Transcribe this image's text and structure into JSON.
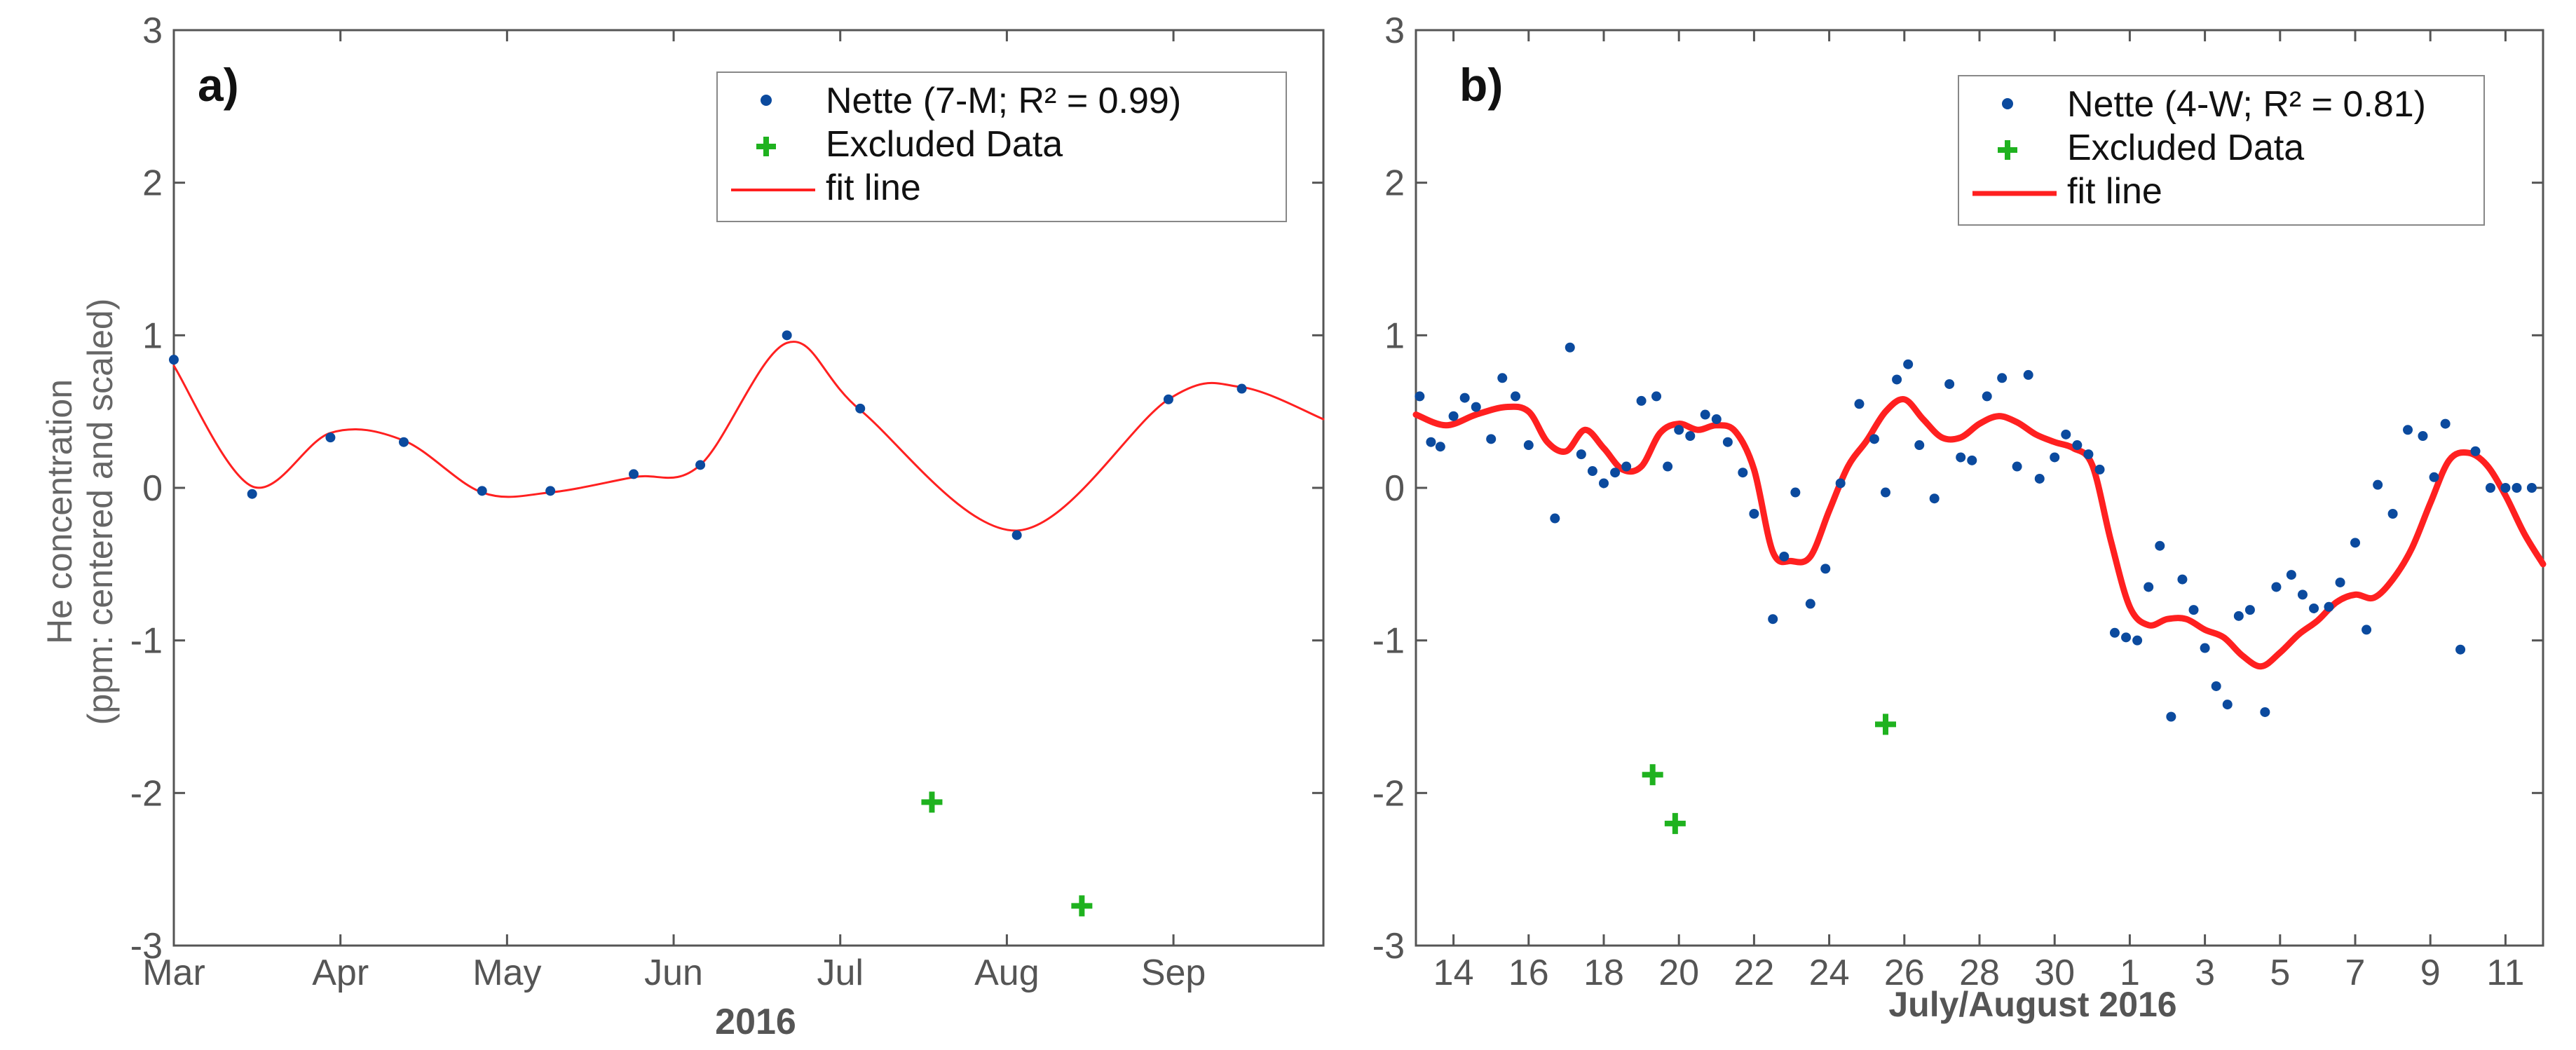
{
  "chart_data": [
    {
      "type": "scatter",
      "panel_label": "a)",
      "xlabel": "2016",
      "ylabel": [
        "He concentration",
        "(ppm: centered and scaled)"
      ],
      "xunit": "month (Mar 2016 = 0)",
      "xlim": [
        0,
        6.9
      ],
      "ylim": [
        -3,
        3
      ],
      "xticks": [
        0,
        1,
        2,
        3,
        4,
        5,
        6
      ],
      "xtick_labels": [
        "Mar",
        "Apr",
        "May",
        "Jun",
        "Jul",
        "Aug",
        "Sep"
      ],
      "yticks": [
        -3,
        -2,
        -1,
        0,
        1,
        2,
        3
      ],
      "ytick_labels": [
        "-3",
        "-2",
        "-1",
        "0",
        "1",
        "2",
        "3"
      ],
      "legend": {
        "position": "top-right",
        "entries": [
          {
            "label": "Nette (7-M; R² = 0.99)",
            "marker": "dot",
            "color": "#0b4a9e"
          },
          {
            "label": "Excluded Data",
            "marker": "plus",
            "color": "#1fb21f"
          },
          {
            "label": "fit line",
            "marker": "line",
            "color": "#ff2020"
          }
        ]
      },
      "series": [
        {
          "name": "Nette (7-M; R² = 0.99)",
          "kind": "points",
          "color": "#0b4a9e",
          "x": [
            0,
            0.47,
            0.94,
            1.38,
            1.85,
            2.26,
            2.76,
            3.16,
            3.68,
            4.12,
            5.06,
            5.97,
            6.41
          ],
          "y": [
            0.84,
            -0.04,
            0.33,
            0.3,
            -0.02,
            -0.02,
            0.09,
            0.15,
            1.0,
            0.52,
            -0.31,
            0.58,
            0.65
          ]
        },
        {
          "name": "Excluded Data",
          "kind": "plus",
          "color": "#1fb21f",
          "x": [
            4.55,
            5.45
          ],
          "y": [
            -2.06,
            -2.74
          ]
        },
        {
          "name": "fit line",
          "kind": "line",
          "color": "#ff2020",
          "width": 3,
          "x": [
            0,
            0.47,
            0.94,
            1.38,
            1.85,
            2.26,
            2.76,
            3.16,
            3.68,
            4.12,
            5.06,
            5.97,
            6.41,
            6.9
          ],
          "y": [
            0.8,
            0.01,
            0.36,
            0.31,
            -0.03,
            -0.03,
            0.07,
            0.15,
            0.95,
            0.51,
            -0.28,
            0.58,
            0.66,
            0.45
          ]
        }
      ]
    },
    {
      "type": "scatter",
      "panel_label": "b)",
      "xlabel": "July/August 2016",
      "xunit": "day (July 13 = 0)",
      "xlim": [
        0,
        30
      ],
      "ylim": [
        -3,
        3
      ],
      "xticks": [
        1,
        3,
        5,
        7,
        9,
        11,
        13,
        15,
        17,
        19,
        21,
        23,
        25,
        27,
        29
      ],
      "xtick_labels": [
        "14",
        "16",
        "18",
        "20",
        "22",
        "24",
        "26",
        "28",
        "30",
        "1",
        "3",
        "5",
        "7",
        "9",
        "11"
      ],
      "yticks": [
        -3,
        -2,
        -1,
        0,
        1,
        2,
        3
      ],
      "ytick_labels": [
        "-3",
        "-2",
        "-1",
        "0",
        "1",
        "2",
        "3"
      ],
      "legend": {
        "position": "top-right",
        "entries": [
          {
            "label": "Nette (4-W; R² = 0.81)",
            "marker": "dot",
            "color": "#0b4a9e"
          },
          {
            "label": "Excluded Data",
            "marker": "plus",
            "color": "#1fb21f"
          },
          {
            "label": "fit line",
            "marker": "line",
            "color": "#ff2020"
          }
        ]
      },
      "series": [
        {
          "name": "Nette (4-W; R² = 0.81)",
          "kind": "points",
          "color": "#0b4a9e",
          "x": [
            0.1,
            0.4,
            0.65,
            1.0,
            1.3,
            1.6,
            2.0,
            2.3,
            2.65,
            3.0,
            3.7,
            4.1,
            4.4,
            4.7,
            5.0,
            5.3,
            5.6,
            6.0,
            6.4,
            6.7,
            7.0,
            7.3,
            7.7,
            8.0,
            8.3,
            8.7,
            9.0,
            9.5,
            9.8,
            10.1,
            10.5,
            10.9,
            11.3,
            11.8,
            12.2,
            12.5,
            12.8,
            13.1,
            13.4,
            13.8,
            14.2,
            14.5,
            14.8,
            15.2,
            15.6,
            16.0,
            16.3,
            16.6,
            17.0,
            17.3,
            17.6,
            17.9,
            18.2,
            18.6,
            18.9,
            19.2,
            19.5,
            19.8,
            20.1,
            20.4,
            20.7,
            21.0,
            21.3,
            21.6,
            21.9,
            22.2,
            22.6,
            22.9,
            23.3,
            23.6,
            23.9,
            24.3,
            24.6,
            25.0,
            25.3,
            25.6,
            26.0,
            26.4,
            26.8,
            27.1,
            27.4,
            27.8,
            28.2,
            28.6,
            29.0,
            29.3,
            29.7
          ],
          "y": [
            0.6,
            0.3,
            0.27,
            0.47,
            0.59,
            0.53,
            0.32,
            0.72,
            0.6,
            0.28,
            -0.2,
            0.92,
            0.22,
            0.11,
            0.03,
            0.1,
            0.14,
            0.57,
            0.6,
            0.14,
            0.38,
            0.34,
            0.48,
            0.45,
            0.3,
            0.1,
            -0.17,
            -0.86,
            -0.45,
            -0.03,
            -0.76,
            -0.53,
            0.03,
            0.55,
            0.32,
            -0.03,
            0.71,
            0.81,
            0.28,
            -0.07,
            0.68,
            0.2,
            0.18,
            0.6,
            0.72,
            0.14,
            0.74,
            0.06,
            0.2,
            0.35,
            0.28,
            0.22,
            0.12,
            -0.95,
            -0.98,
            -1.0,
            -0.65,
            -0.38,
            -1.5,
            -0.6,
            -0.8,
            -1.05,
            -1.3,
            -1.42,
            -0.84,
            -0.8,
            -1.47,
            -0.65,
            -0.57,
            -0.7,
            -0.79,
            -0.78,
            -0.62,
            -0.36,
            -0.93,
            0.02,
            -0.17,
            0.38,
            0.34,
            0.07,
            0.42,
            -1.06,
            0.24,
            0.0,
            0.0,
            0.0,
            0.0
          ]
        },
        {
          "name": "Excluded Data",
          "kind": "plus",
          "color": "#1fb21f",
          "x": [
            6.3,
            6.9,
            12.5
          ],
          "y": [
            -1.88,
            -2.2,
            -1.55
          ]
        },
        {
          "name": "fit line",
          "kind": "line",
          "color": "#ff2020",
          "width": 9,
          "x": [
            0,
            0.8,
            1.6,
            2.4,
            3.0,
            3.5,
            4.0,
            4.5,
            5.0,
            5.5,
            6.0,
            6.5,
            7.0,
            7.5,
            8.0,
            8.5,
            9.0,
            9.5,
            10.0,
            10.5,
            11.0,
            11.5,
            12.0,
            12.5,
            13.0,
            13.5,
            14.0,
            14.5,
            15.0,
            15.5,
            16.0,
            16.5,
            17.0,
            17.5,
            18.0,
            18.5,
            19.0,
            19.5,
            20.0,
            20.5,
            21.0,
            21.5,
            22.0,
            22.5,
            23.0,
            23.5,
            24.0,
            24.5,
            25.0,
            25.5,
            26.0,
            26.5,
            27.0,
            27.5,
            28.0,
            28.5,
            29.0,
            29.5,
            30.0
          ],
          "y": [
            0.48,
            0.41,
            0.48,
            0.53,
            0.5,
            0.3,
            0.24,
            0.38,
            0.26,
            0.12,
            0.14,
            0.36,
            0.42,
            0.38,
            0.41,
            0.37,
            0.12,
            -0.42,
            -0.48,
            -0.45,
            -0.15,
            0.14,
            0.31,
            0.5,
            0.58,
            0.45,
            0.33,
            0.33,
            0.42,
            0.47,
            0.43,
            0.35,
            0.3,
            0.26,
            0.15,
            -0.35,
            -0.78,
            -0.9,
            -0.86,
            -0.86,
            -0.93,
            -0.98,
            -1.1,
            -1.17,
            -1.08,
            -0.96,
            -0.87,
            -0.75,
            -0.7,
            -0.72,
            -0.6,
            -0.4,
            -0.1,
            0.18,
            0.23,
            0.15,
            -0.05,
            -0.3,
            -0.5
          ]
        }
      ]
    }
  ]
}
